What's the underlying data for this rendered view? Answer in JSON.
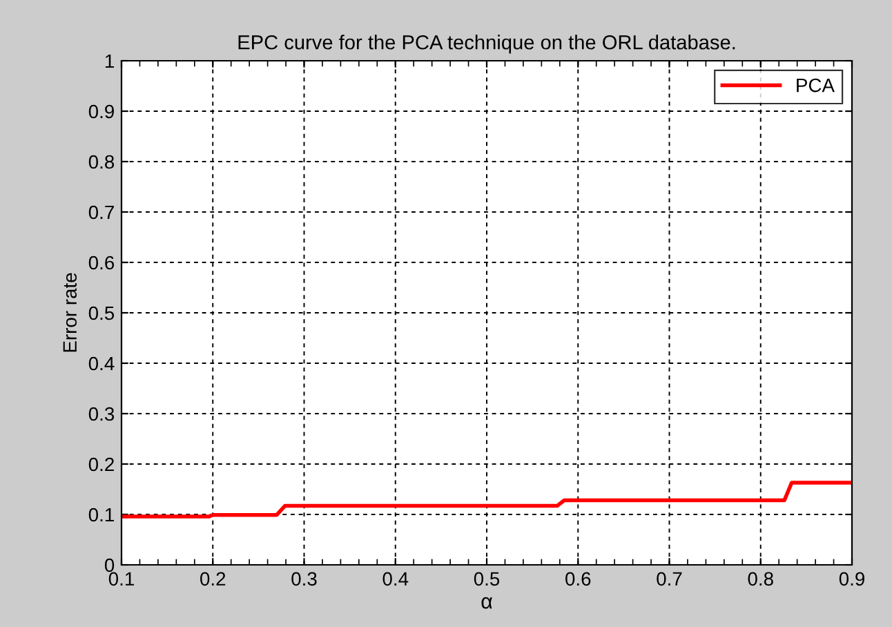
{
  "chart_data": {
    "type": "line",
    "title": "EPC curve for the PCA technique on the ORL database.",
    "xlabel": "α",
    "ylabel": "Error rate",
    "series": [
      {
        "name": "PCA",
        "color": "#ff0000",
        "x": [
          0.1,
          0.196,
          0.2,
          0.27,
          0.279,
          0.577,
          0.585,
          0.826,
          0.834,
          0.9
        ],
        "values": [
          0.096,
          0.096,
          0.099,
          0.099,
          0.117,
          0.117,
          0.128,
          0.128,
          0.163,
          0.163
        ]
      }
    ],
    "xlim": [
      0.1,
      0.9
    ],
    "xticks": [
      0.1,
      0.2,
      0.3,
      0.4,
      0.5,
      0.6,
      0.7,
      0.8,
      0.9
    ],
    "ylim": [
      0,
      1
    ],
    "yticks": [
      0,
      0.1,
      0.2,
      0.3,
      0.4,
      0.5,
      0.6,
      0.7,
      0.8,
      0.9,
      1
    ],
    "grid": true,
    "legend": "top right",
    "line_style": "solid",
    "marker": "none"
  }
}
